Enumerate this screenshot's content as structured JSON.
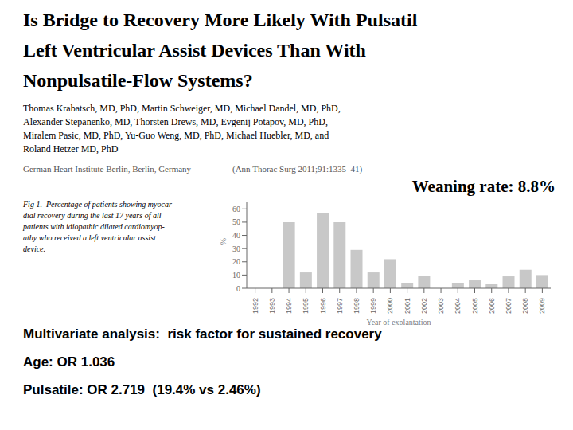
{
  "chart_data": {
    "type": "bar",
    "title": "Is Bridge to Recovery More Likely With Pulsatil\nLeft Ventricular Assist Devices Than With\nNonpulsatile-Flow Systems?",
    "categories": [
      "1992",
      "1993",
      "1994",
      "1995",
      "1996",
      "1997",
      "1998",
      "1999",
      "2000",
      "2001",
      "2002",
      "2003",
      "2004",
      "2005",
      "2006",
      "2007",
      "2008",
      "2009"
    ],
    "values": [
      0,
      0,
      50,
      12,
      57,
      50,
      29,
      12,
      22,
      4,
      9,
      0,
      4,
      6,
      3,
      9,
      14,
      10
    ],
    "color": "#c8c8c8",
    "xlabel": "Year of explantation",
    "ylabel": "%",
    "ylim": [
      0,
      65
    ],
    "yticks": [
      0,
      10,
      20,
      30,
      40,
      50,
      60
    ],
    "grid": false,
    "annotations": [
      "Thomas Krabatsch, MD, PhD, Martin Schweiger, MD, Michael Dandel, MD, PhD,\nAlexander Stepanenko, MD, Thorsten Drews, MD, Evgenij Potapov, MD, PhD,\nMiralem Pasic, MD, PhD, Yu-Guo Weng, MD, PhD, Michael Huebler, MD, and\nRoland Hetzer MD, PhD",
      "German Heart Institute Berlin, Berlin, Germany",
      "(Ann Thorac Surg 2011;91:1335–41)",
      "Weaning rate: 8.8%",
      "Fig 1.  Percentage of patients showing myocar-\ndial recovery during the last 17 years of all\npatients with idiopathic dilated cardiomyop-\nathy who received a left ventricular assist\ndevice.",
      "Multivariate analysis:  risk factor for sustained recovery",
      "Age: OR 1.036",
      "Pulsatile: OR 2.719  (19.4% vs 2.46%)"
    ]
  }
}
